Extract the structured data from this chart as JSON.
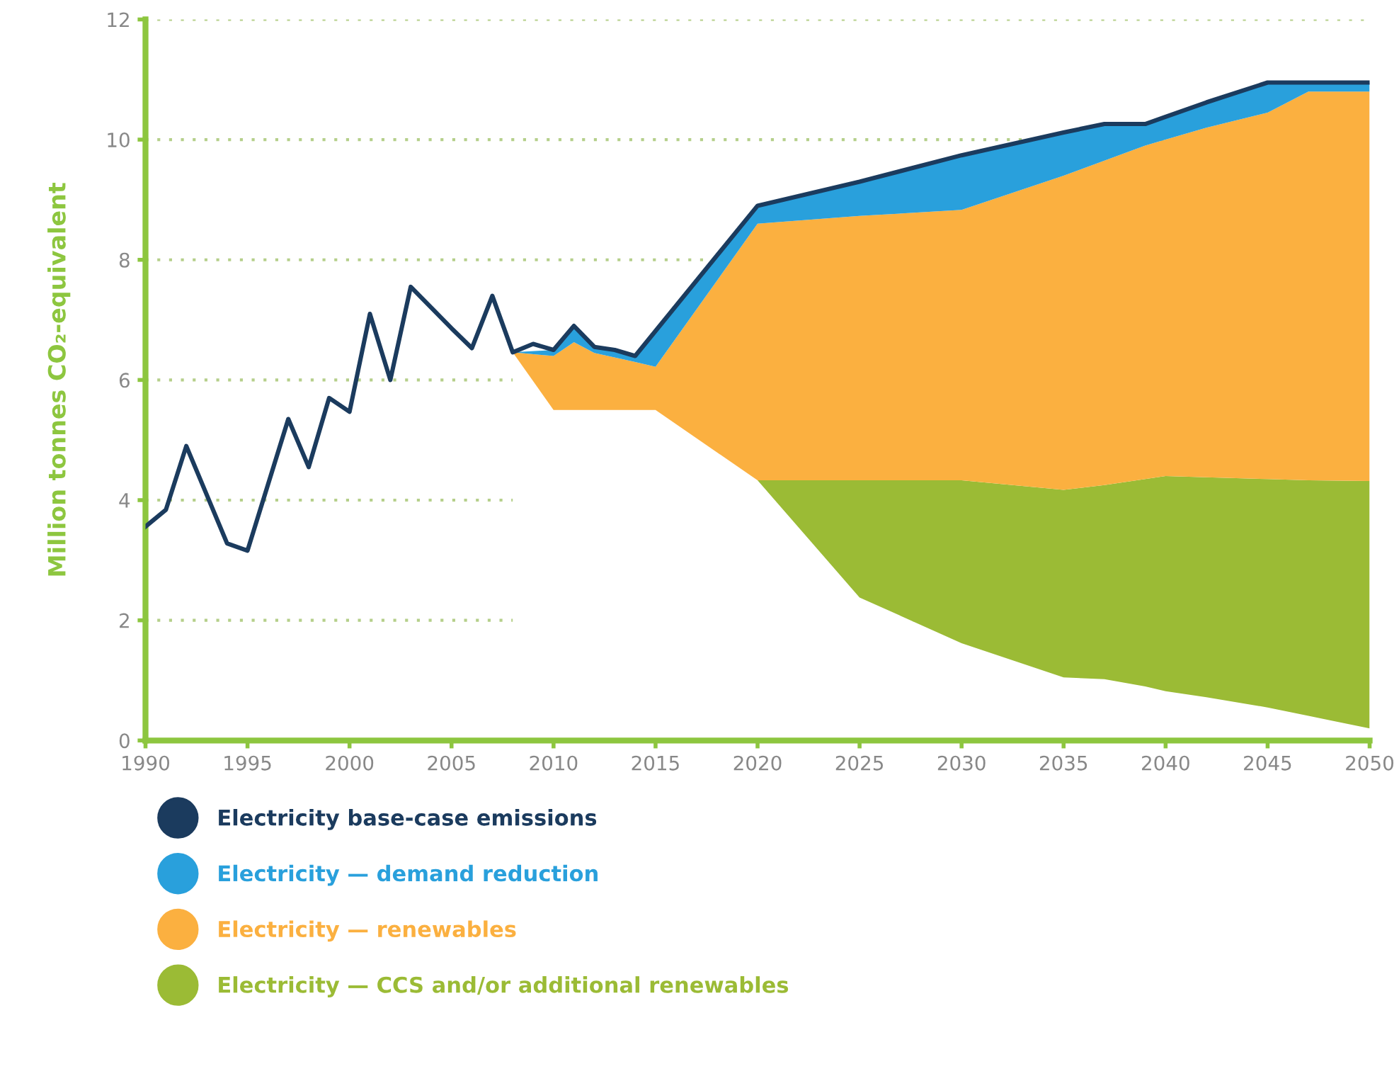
{
  "chart_data": {
    "type": "area",
    "stacked": true,
    "ylabel": "Million tonnes CO₂-equivalent",
    "xlim": [
      1990,
      2050
    ],
    "xticks": [
      1990,
      1995,
      2000,
      2005,
      2010,
      2015,
      2020,
      2025,
      2030,
      2035,
      2040,
      2045,
      2050
    ],
    "ylim": [
      0,
      12
    ],
    "yticks": [
      0,
      2,
      4,
      6,
      8,
      10,
      12
    ],
    "grid": "y",
    "legend": "bottom",
    "x": [
      2008,
      2010,
      2011,
      2012,
      2014,
      2015,
      2020,
      2025,
      2030,
      2035,
      2037,
      2039,
      2040,
      2042,
      2045,
      2047,
      2050
    ],
    "series": [
      {
        "color": "#ffffff",
        "values": [
          6.46,
          5.5,
          5.5,
          5.5,
          5.5,
          5.5,
          4.33,
          2.38,
          1.62,
          1.05,
          1.02,
          0.9,
          0.82,
          0.72,
          0.55,
          0.41,
          0.2
        ]
      },
      {
        "name": "Electricity — CCS and/or additional renewables",
        "color": "#9bbb35",
        "values": [
          0,
          0,
          0,
          0,
          0,
          0,
          0,
          1.95,
          2.71,
          3.12,
          3.23,
          3.45,
          3.58,
          3.66,
          3.8,
          3.92,
          4.12
        ]
      },
      {
        "name": "Electricity — renewables",
        "color": "#fbb040",
        "values": [
          0,
          0.9,
          1.13,
          0.95,
          0.8,
          0.72,
          4.27,
          4.4,
          4.5,
          5.23,
          5.4,
          5.55,
          5.6,
          5.82,
          6.1,
          6.47,
          6.48
        ]
      },
      {
        "name": "Electricity — demand reduction",
        "color": "#29a0dc",
        "values": [
          0,
          0.1,
          0.27,
          0.1,
          0.1,
          0.6,
          0.3,
          0.57,
          0.91,
          0.72,
          0.61,
          0.36,
          0.38,
          0.42,
          0.5,
          0.15,
          0.15
        ]
      },
      {
        "name": "Electricity base-case emissions",
        "type": "line",
        "color": "#1b3b5e",
        "x": [
          1990,
          1991,
          1992,
          1994,
          1995,
          1997,
          1998,
          1999,
          2000,
          2001,
          2002,
          2003,
          2005,
          2006,
          2007,
          2008,
          2009,
          2010,
          2011,
          2012,
          2013,
          2014,
          2020,
          2025,
          2030,
          2035,
          2037,
          2039,
          2040,
          2042,
          2045,
          2050
        ],
        "values": [
          3.56,
          3.84,
          4.9,
          3.28,
          3.16,
          5.35,
          4.55,
          5.7,
          5.47,
          7.1,
          6.0,
          7.55,
          6.86,
          6.53,
          7.4,
          6.46,
          6.6,
          6.5,
          6.9,
          6.55,
          6.5,
          6.4,
          8.9,
          9.3,
          9.74,
          10.12,
          10.26,
          10.26,
          10.38,
          10.62,
          10.95,
          10.95
        ]
      }
    ]
  }
}
